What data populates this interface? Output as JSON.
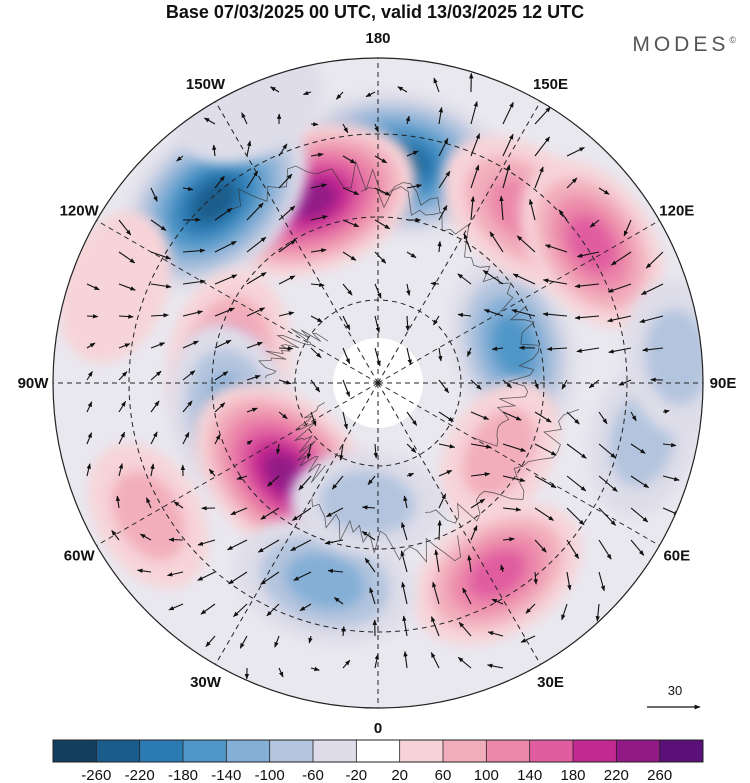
{
  "title": "Base 07/03/2025 00 UTC, valid 13/03/2025 12 UTC",
  "brand": "MODES",
  "brand_mark": "©",
  "longitude_labels": [
    "180",
    "150E",
    "120E",
    "90E",
    "60E",
    "30E",
    "0",
    "30W",
    "60W",
    "90W",
    "120W",
    "150W"
  ],
  "vector_scale_label": "30",
  "colorbar": {
    "tick_labels": [
      "-260",
      "-220",
      "-180",
      "-140",
      "-100",
      "-60",
      "-20",
      "20",
      "60",
      "100",
      "140",
      "180",
      "220",
      "260"
    ],
    "colors": [
      "#123f5e",
      "#1a5d8c",
      "#2a7ab4",
      "#4f97c8",
      "#84afd6",
      "#b3c4de",
      "#dedde9",
      "#ffffff",
      "#f7d4d8",
      "#f2aebb",
      "#ec88aa",
      "#e05da0",
      "#c42891",
      "#921a87",
      "#5a1078"
    ]
  },
  "anomalies": [
    {
      "lon": 175,
      "r": 220,
      "sign": -1,
      "level": 6
    },
    {
      "lon": 200,
      "r": 195,
      "sign": 1,
      "level": 6
    },
    {
      "lon": 222,
      "r": 245,
      "sign": -1,
      "level": 6
    },
    {
      "lon": 205,
      "r": 305,
      "sign": -1,
      "level": 1
    },
    {
      "lon": 105,
      "r": 140,
      "sign": -1,
      "level": 4
    },
    {
      "lon": 140,
      "r": 225,
      "sign": 1,
      "level": 3
    },
    {
      "lon": 123,
      "r": 255,
      "sign": 1,
      "level": 4
    },
    {
      "lon": 60,
      "r": 140,
      "sign": 1,
      "level": 2
    },
    {
      "lon": 32,
      "r": 225,
      "sign": 1,
      "level": 4
    },
    {
      "lon": 78,
      "r": 270,
      "sign": -1,
      "level": 2
    },
    {
      "lon": 262,
      "r": 150,
      "sign": 1,
      "level": 3
    },
    {
      "lon": 282,
      "r": 150,
      "sign": -1,
      "level": 3
    },
    {
      "lon": 315,
      "r": 130,
      "sign": 1,
      "level": 6
    },
    {
      "lon": 345,
      "r": 205,
      "sign": -1,
      "level": 3
    },
    {
      "lon": 300,
      "r": 265,
      "sign": 1,
      "level": 2
    },
    {
      "lon": 95,
      "r": 300,
      "sign": -1,
      "level": 2
    },
    {
      "lon": 355,
      "r": 120,
      "sign": -1,
      "level": 2
    },
    {
      "lon": 250,
      "r": 280,
      "sign": 1,
      "level": 1
    }
  ]
}
